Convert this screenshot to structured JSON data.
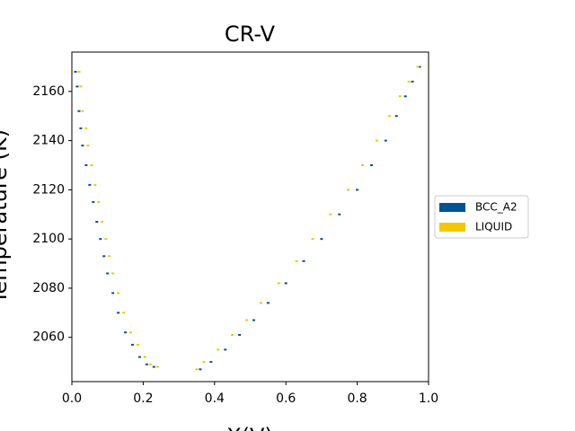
{
  "chart_data": {
    "type": "scatter",
    "title": "CR-V",
    "xlabel": "X(V)",
    "ylabel": "Temperature (K)",
    "xlim": [
      0,
      1
    ],
    "xticks": [
      {
        "value": 0,
        "label": "0.0"
      },
      0.2,
      0.4,
      0.6,
      0.8,
      {
        "value": 1,
        "label": "1.0"
      }
    ],
    "ylim": [
      2042,
      2176
    ],
    "yticks": [
      2060,
      2080,
      2100,
      2120,
      2140,
      2160
    ],
    "grid": false,
    "legend": "right",
    "series": [
      {
        "name": "BCC_A2",
        "color": "#005293",
        "x": [
          0.01,
          0.015,
          0.02,
          0.025,
          0.03,
          0.04,
          0.05,
          0.06,
          0.07,
          0.08,
          0.09,
          0.1,
          0.115,
          0.13,
          0.15,
          0.17,
          0.19,
          0.21,
          0.23,
          0.36,
          0.39,
          0.43,
          0.47,
          0.51,
          0.55,
          0.6,
          0.65,
          0.7,
          0.75,
          0.8,
          0.84,
          0.88,
          0.91,
          0.935,
          0.955,
          0.975
        ],
        "values": [
          2168,
          2162,
          2152,
          2145,
          2138,
          2130,
          2122,
          2115,
          2107,
          2100,
          2093,
          2086,
          2078,
          2070,
          2062,
          2057,
          2052,
          2049,
          2048,
          2047,
          2050,
          2055,
          2061,
          2067,
          2074,
          2082,
          2091,
          2100,
          2110,
          2120,
          2130,
          2140,
          2150,
          2158,
          2164,
          2170
        ]
      },
      {
        "name": "LIQUID",
        "color": "#f4c800",
        "x": [
          0.02,
          0.025,
          0.03,
          0.04,
          0.045,
          0.055,
          0.065,
          0.075,
          0.085,
          0.095,
          0.105,
          0.115,
          0.13,
          0.145,
          0.165,
          0.185,
          0.205,
          0.22,
          0.24,
          0.35,
          0.37,
          0.41,
          0.45,
          0.49,
          0.53,
          0.58,
          0.63,
          0.675,
          0.725,
          0.775,
          0.815,
          0.855,
          0.89,
          0.92,
          0.945,
          0.97
        ],
        "values": [
          2168,
          2162,
          2152,
          2145,
          2138,
          2130,
          2122,
          2115,
          2107,
          2100,
          2093,
          2086,
          2078,
          2070,
          2062,
          2057,
          2052,
          2049,
          2048,
          2047,
          2050,
          2055,
          2061,
          2067,
          2074,
          2082,
          2091,
          2100,
          2110,
          2120,
          2130,
          2140,
          2150,
          2158,
          2164,
          2170
        ]
      }
    ]
  }
}
